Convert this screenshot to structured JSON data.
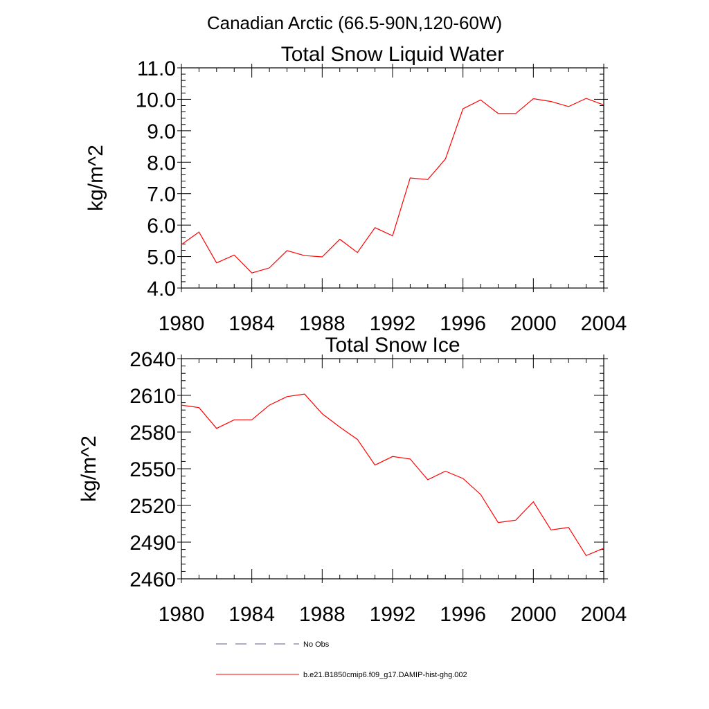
{
  "figure": {
    "title": "Canadian Arctic (66.5-90N,120-60W)"
  },
  "chart_data": [
    {
      "type": "line",
      "title": "Total Snow Liquid Water",
      "xlabel": "",
      "ylabel": "kg/m^2",
      "xlim": [
        1980,
        2004
      ],
      "ylim": [
        4.0,
        11.0
      ],
      "xticks": [
        1980,
        1984,
        1988,
        1992,
        1996,
        2000,
        2004
      ],
      "xtick_labels": [
        "1980",
        "1984",
        "1988",
        "1992",
        "1996",
        "2000",
        "2004"
      ],
      "yticks": [
        4.0,
        5.0,
        6.0,
        7.0,
        8.0,
        9.0,
        10.0,
        11.0
      ],
      "ytick_labels": [
        "4.0",
        "5.0",
        "6.0",
        "7.0",
        "8.0",
        "9.0",
        "10.0",
        "11.0"
      ],
      "grid": false,
      "series": [
        {
          "name": "b.e21.B1850cmip6.f09_g17.DAMIP-hist-ghg.002",
          "color": "#ff0000",
          "x": [
            1980,
            1981,
            1982,
            1983,
            1984,
            1985,
            1986,
            1987,
            1988,
            1989,
            1990,
            1991,
            1992,
            1993,
            1994,
            1995,
            1996,
            1997,
            1998,
            1999,
            2000,
            2001,
            2002,
            2003,
            2004
          ],
          "values": [
            5.38,
            5.78,
            4.8,
            5.05,
            4.48,
            4.64,
            5.19,
            5.03,
            4.99,
            5.55,
            5.13,
            5.92,
            5.66,
            7.5,
            7.45,
            8.1,
            9.7,
            9.98,
            9.55,
            9.55,
            10.02,
            9.93,
            9.77,
            10.03,
            9.82
          ]
        }
      ]
    },
    {
      "type": "line",
      "title": "Total Snow Ice",
      "xlabel": "",
      "ylabel": "kg/m^2",
      "xlim": [
        1980,
        2004
      ],
      "ylim": [
        2460,
        2640
      ],
      "xticks": [
        1980,
        1984,
        1988,
        1992,
        1996,
        2000,
        2004
      ],
      "xtick_labels": [
        "1980",
        "1984",
        "1988",
        "1992",
        "1996",
        "2000",
        "2004"
      ],
      "yticks": [
        2460,
        2490,
        2520,
        2550,
        2580,
        2610,
        2640
      ],
      "ytick_labels": [
        "2460",
        "2490",
        "2520",
        "2550",
        "2580",
        "2610",
        "2640"
      ],
      "grid": false,
      "series": [
        {
          "name": "b.e21.B1850cmip6.f09_g17.DAMIP-hist-ghg.002",
          "color": "#ff0000",
          "x": [
            1980,
            1981,
            1982,
            1983,
            1984,
            1985,
            1986,
            1987,
            1988,
            1989,
            1990,
            1991,
            1992,
            1993,
            1994,
            1995,
            1996,
            1997,
            1998,
            1999,
            2000,
            2001,
            2002,
            2003,
            2004
          ],
          "values": [
            2602,
            2600,
            2583,
            2590,
            2590,
            2602,
            2609,
            2611,
            2595,
            2584,
            2574,
            2553,
            2560,
            2558,
            2541,
            2548,
            2542,
            2529,
            2506,
            2508,
            2523,
            2500,
            2502,
            2479,
            2485
          ]
        }
      ]
    }
  ],
  "legend": {
    "placement": "bottom",
    "items": [
      {
        "label": "No Obs",
        "style": "dashed",
        "color": "#5a5a8a"
      },
      {
        "label": "b.e21.B1850cmip6.f09_g17.DAMIP-hist-ghg.002",
        "style": "solid",
        "color": "#ff0000"
      }
    ]
  }
}
